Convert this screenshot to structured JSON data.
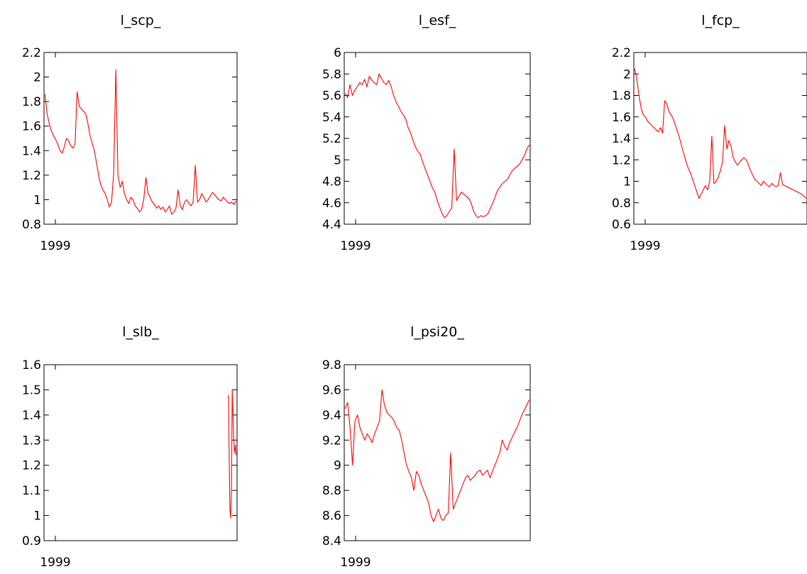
{
  "chart_data": [
    {
      "type": "line",
      "title": "l_scp_",
      "x_tick_labels": [
        "1999"
      ],
      "ylim": [
        0.8,
        2.2
      ],
      "y_ticks": [
        "0.8",
        "1",
        "1.2",
        "1.4",
        "1.6",
        "1.8",
        "2",
        "2.2"
      ],
      "series": [
        {
          "color": "#ff0000",
          "values": [
            1.86,
            1.7,
            1.62,
            1.56,
            1.52,
            1.49,
            1.45,
            1.4,
            1.38,
            1.43,
            1.5,
            1.48,
            1.44,
            1.42,
            1.45,
            1.88,
            1.76,
            1.74,
            1.72,
            1.7,
            1.62,
            1.52,
            1.46,
            1.4,
            1.3,
            1.2,
            1.12,
            1.08,
            1.05,
            1.0,
            0.94,
            0.98,
            1.22,
            2.06,
            1.2,
            1.1,
            1.15,
            1.05,
            1.0,
            0.97,
            1.02,
            1.0,
            0.95,
            0.93,
            0.9,
            0.92,
            1.0,
            1.18,
            1.05,
            1.02,
            0.98,
            0.96,
            0.93,
            0.95,
            0.92,
            0.94,
            0.9,
            0.92,
            0.95,
            0.88,
            0.9,
            0.93,
            1.08,
            0.95,
            0.92,
            0.98,
            1.0,
            0.97,
            0.95,
            0.98,
            1.28,
            0.98,
            1.0,
            1.05,
            1.02,
            0.98,
            1.0,
            1.03,
            1.06,
            1.04,
            1.02,
            1.0,
            0.99,
            1.02,
            1.0,
            0.98,
            0.97,
            0.98,
            0.96,
            0.99
          ]
        }
      ]
    },
    {
      "type": "line",
      "title": "l_esf_",
      "x_tick_labels": [
        "1999"
      ],
      "ylim": [
        4.4,
        6.0
      ],
      "y_ticks": [
        "4.4",
        "4.6",
        "4.8",
        "5",
        "5.2",
        "5.4",
        "5.6",
        "5.8",
        "6"
      ],
      "series": [
        {
          "color": "#ff0000",
          "values": [
            5.62,
            5.58,
            5.7,
            5.6,
            5.65,
            5.68,
            5.72,
            5.7,
            5.75,
            5.68,
            5.78,
            5.74,
            5.72,
            5.7,
            5.8,
            5.76,
            5.72,
            5.7,
            5.74,
            5.68,
            5.6,
            5.54,
            5.5,
            5.45,
            5.42,
            5.38,
            5.3,
            5.25,
            5.18,
            5.12,
            5.08,
            5.05,
            4.98,
            4.92,
            4.86,
            4.8,
            4.74,
            4.7,
            4.62,
            4.56,
            4.5,
            4.46,
            4.48,
            4.52,
            4.55,
            5.1,
            4.62,
            4.66,
            4.7,
            4.68,
            4.66,
            4.64,
            4.6,
            4.52,
            4.48,
            4.46,
            4.48,
            4.47,
            4.48,
            4.5,
            4.55,
            4.6,
            4.66,
            4.72,
            4.75,
            4.78,
            4.8,
            4.82,
            4.86,
            4.9,
            4.92,
            4.94,
            4.96,
            5.0,
            5.04,
            5.1,
            5.14
          ]
        }
      ]
    },
    {
      "type": "line",
      "title": "l_fcp_",
      "x_tick_labels": [
        "1999"
      ],
      "ylim": [
        0.6,
        2.2
      ],
      "y_ticks": [
        "0.6",
        "0.8",
        "1",
        "1.2",
        "1.4",
        "1.6",
        "1.8",
        "2",
        "2.2"
      ],
      "series": [
        {
          "color": "#ff0000",
          "values": [
            2.05,
            1.95,
            1.8,
            1.68,
            1.62,
            1.6,
            1.56,
            1.54,
            1.52,
            1.5,
            1.48,
            1.46,
            1.5,
            1.45,
            1.75,
            1.72,
            1.65,
            1.62,
            1.58,
            1.52,
            1.46,
            1.4,
            1.32,
            1.25,
            1.18,
            1.12,
            1.08,
            1.02,
            0.96,
            0.9,
            0.84,
            0.88,
            0.92,
            0.96,
            0.92,
            1.0,
            1.42,
            0.98,
            1.0,
            1.04,
            1.1,
            1.18,
            1.52,
            1.3,
            1.38,
            1.32,
            1.22,
            1.18,
            1.15,
            1.18,
            1.2,
            1.22,
            1.2,
            1.16,
            1.1,
            1.06,
            1.02,
            1.0,
            0.98,
            0.96,
            1.0,
            0.98,
            0.96,
            0.95,
            0.98,
            0.96,
            0.95,
            0.96,
            1.08,
            0.97,
            0.96,
            0.95,
            0.94,
            0.93,
            0.92,
            0.91,
            0.9,
            0.89,
            0.88,
            0.86,
            0.84
          ]
        }
      ]
    },
    {
      "type": "line",
      "title": "l_slb_",
      "x_tick_labels": [
        "1999"
      ],
      "ylim": [
        0.9,
        1.6
      ],
      "y_ticks": [
        "0.9",
        "1",
        "1.1",
        "1.2",
        "1.3",
        "1.4",
        "1.5",
        "1.6"
      ],
      "x_start_fraction": 0.955,
      "series": [
        {
          "color": "#ff0000",
          "values": [
            1.48,
            1.26,
            1.02,
            0.99,
            1.1,
            1.5,
            1.4,
            1.3,
            1.25,
            1.28,
            1.24
          ]
        }
      ]
    },
    {
      "type": "line",
      "title": "l_psi20_",
      "x_tick_labels": [
        "1999"
      ],
      "ylim": [
        8.4,
        9.8
      ],
      "y_ticks": [
        "8.4",
        "8.6",
        "8.8",
        "9",
        "9.2",
        "9.4",
        "9.6",
        "9.8"
      ],
      "series": [
        {
          "color": "#ff0000",
          "values": [
            9.45,
            9.5,
            9.3,
            9.0,
            9.35,
            9.4,
            9.3,
            9.25,
            9.2,
            9.25,
            9.22,
            9.18,
            9.25,
            9.3,
            9.35,
            9.6,
            9.48,
            9.42,
            9.4,
            9.38,
            9.35,
            9.3,
            9.28,
            9.2,
            9.1,
            9.0,
            8.95,
            8.9,
            8.8,
            8.95,
            8.92,
            8.85,
            8.8,
            8.75,
            8.7,
            8.6,
            8.55,
            8.6,
            8.65,
            8.58,
            8.56,
            8.6,
            8.62,
            9.1,
            8.65,
            8.7,
            8.75,
            8.8,
            8.85,
            8.9,
            8.92,
            8.88,
            8.9,
            8.92,
            8.95,
            8.96,
            8.92,
            8.94,
            8.96,
            8.9,
            8.95,
            9.0,
            9.05,
            9.1,
            9.2,
            9.15,
            9.12,
            9.18,
            9.22,
            9.26,
            9.3,
            9.35,
            9.4,
            9.44,
            9.48,
            9.52
          ]
        }
      ]
    }
  ]
}
